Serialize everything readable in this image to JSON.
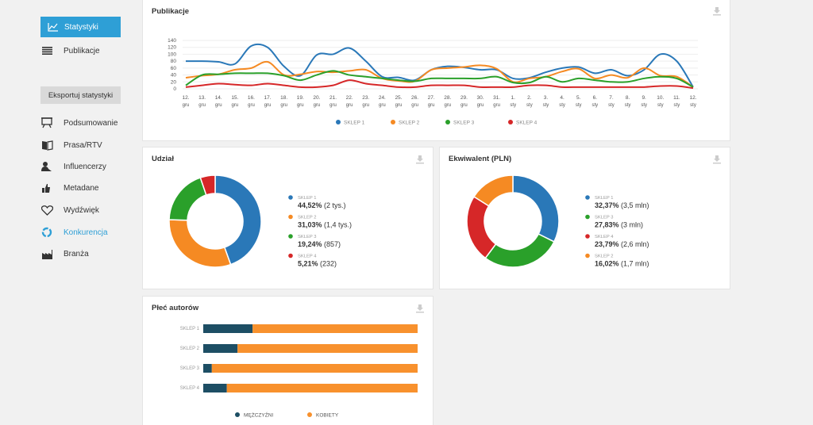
{
  "sidebar": {
    "items": [
      {
        "label": "Statystyki",
        "icon": "line-chart-icon"
      },
      {
        "label": "Publikacje",
        "icon": "list-icon"
      }
    ],
    "export_label": "Eksportuj statystyki",
    "export_items": [
      {
        "label": "Podsumowanie",
        "icon": "presentation-icon"
      },
      {
        "label": "Prasa/RTV",
        "icon": "newspaper-icon"
      },
      {
        "label": "Influencerzy",
        "icon": "person-icon"
      },
      {
        "label": "Metadane",
        "icon": "thumbs-icon"
      },
      {
        "label": "Wydźwięk",
        "icon": "heart-icon"
      },
      {
        "label": "Konkurencja",
        "icon": "cycle-icon"
      },
      {
        "label": "Branża",
        "icon": "factory-icon"
      }
    ]
  },
  "colors": {
    "sklep1": "#2a78b8",
    "sklep2": "#f58a23",
    "sklep3": "#2aa02a",
    "sklep4": "#d62728",
    "male": "#1d4e64",
    "female": "#f8912d",
    "accent": "#2e9fd6"
  },
  "publikacje": {
    "title": "Publikacje",
    "chart_data": {
      "type": "line",
      "categories": [
        "12. gru",
        "13. gru",
        "14. gru",
        "15. gru",
        "16. gru",
        "17. gru",
        "18. gru",
        "19. gru",
        "20. gru",
        "21. gru",
        "22. gru",
        "23. gru",
        "24. gru",
        "25. gru",
        "26. gru",
        "27. gru",
        "28. gru",
        "29. gru",
        "30. gru",
        "31. gru",
        "1. sty",
        "2. sty",
        "3. sty",
        "4. sty",
        "5. sty",
        "6. sty",
        "7. sty",
        "8. sty",
        "9. sty",
        "10. sty",
        "11. sty",
        "12. sty"
      ],
      "ylim": [
        0,
        140
      ],
      "yticks": [
        "0",
        "20",
        "40",
        "60",
        "80",
        "100",
        "120",
        "140"
      ],
      "series": [
        {
          "name": "SKLEP 1",
          "values": [
            80,
            80,
            78,
            72,
            124,
            120,
            65,
            38,
            98,
            100,
            118,
            80,
            35,
            33,
            25,
            55,
            65,
            62,
            55,
            55,
            30,
            32,
            48,
            60,
            63,
            45,
            55,
            38,
            55,
            100,
            80,
            5
          ]
        },
        {
          "name": "SKLEP 2",
          "values": [
            32,
            38,
            42,
            55,
            60,
            78,
            40,
            42,
            50,
            48,
            52,
            55,
            30,
            23,
            22,
            55,
            60,
            63,
            68,
            58,
            20,
            30,
            35,
            50,
            58,
            30,
            40,
            32,
            60,
            38,
            35,
            5
          ]
        },
        {
          "name": "SKLEP 3",
          "values": [
            10,
            40,
            42,
            45,
            45,
            45,
            38,
            25,
            40,
            52,
            40,
            35,
            30,
            25,
            22,
            30,
            30,
            30,
            30,
            35,
            18,
            18,
            35,
            20,
            30,
            25,
            20,
            20,
            30,
            35,
            30,
            5
          ]
        },
        {
          "name": "SKLEP 4",
          "values": [
            5,
            10,
            15,
            12,
            10,
            15,
            10,
            5,
            5,
            10,
            25,
            15,
            10,
            5,
            5,
            10,
            10,
            10,
            5,
            5,
            5,
            10,
            10,
            5,
            5,
            5,
            5,
            5,
            5,
            8,
            8,
            2
          ]
        }
      ]
    }
  },
  "udzial": {
    "title": "Udział",
    "chart_data": {
      "type": "pie",
      "slices": [
        {
          "name": "SKLEP 1",
          "value": 44.52,
          "pct": "44,52%",
          "extra": "(2 tys.)"
        },
        {
          "name": "SKLEP 2",
          "value": 31.03,
          "pct": "31,03%",
          "extra": "(1,4 tys.)"
        },
        {
          "name": "SKLEP 3",
          "value": 19.24,
          "pct": "19,24%",
          "extra": "(857)"
        },
        {
          "name": "SKLEP 4",
          "value": 5.21,
          "pct": "5,21%",
          "extra": "(232)"
        }
      ]
    }
  },
  "ekwiwalent": {
    "title": "Ekwiwalent (PLN)",
    "chart_data": {
      "type": "pie",
      "slices": [
        {
          "name": "SKLEP 1",
          "value": 32.37,
          "pct": "32,37%",
          "extra": "(3,5 mln)",
          "color": "#2a78b8"
        },
        {
          "name": "SKLEP 3",
          "value": 27.83,
          "pct": "27,83%",
          "extra": "(3 mln)",
          "color": "#2aa02a"
        },
        {
          "name": "SKLEP 4",
          "value": 23.79,
          "pct": "23,79%",
          "extra": "(2,6 mln)",
          "color": "#d62728"
        },
        {
          "name": "SKLEP 2",
          "value": 16.02,
          "pct": "16,02%",
          "extra": "(1,7 mln)",
          "color": "#f58a23"
        }
      ]
    }
  },
  "plec": {
    "title": "Płeć autorów",
    "chart_data": {
      "type": "bar",
      "categories": [
        "SKLEP 1",
        "SKLEP 2",
        "SKLEP 3",
        "SKLEP 4"
      ],
      "series": [
        {
          "name": "MĘŻCZYŹNI",
          "values": [
            23,
            16,
            4,
            11
          ]
        },
        {
          "name": "KOBIETY",
          "values": [
            77,
            84,
            96,
            89
          ]
        }
      ]
    }
  }
}
